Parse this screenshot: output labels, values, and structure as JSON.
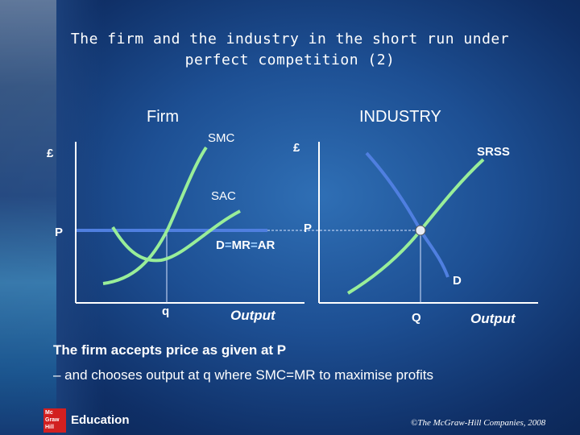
{
  "title": {
    "line1": "The firm and the industry in the short run under",
    "line2": "perfect competition (2)"
  },
  "firm": {
    "heading": "Firm",
    "y_axis_label": "£",
    "price_label": "P",
    "smc_label": "SMC",
    "sac_label": "SAC",
    "demand_label_parts": [
      "D",
      "=",
      "MR",
      "=",
      "AR"
    ],
    "quantity_label": "q",
    "x_axis_label": "Output"
  },
  "industry": {
    "heading": "INDUSTRY",
    "y_axis_label": "£",
    "price_label": "P",
    "supply_label": "SRSS",
    "demand_label": "D",
    "quantity_label": "Q",
    "x_axis_label": "Output"
  },
  "notes": {
    "line1": "The firm accepts price as given at P",
    "line2": "– and chooses output at q where SMC=MR to maximise profits"
  },
  "footer": {
    "logo_text": "Mc Graw Hill",
    "brand": "Education",
    "copyright": "©The McGraw-Hill Companies, 2008"
  },
  "colors": {
    "curve_green": "#99ee99",
    "demand_blue": "#4f7fe0",
    "axis_white": "#ffffff"
  }
}
